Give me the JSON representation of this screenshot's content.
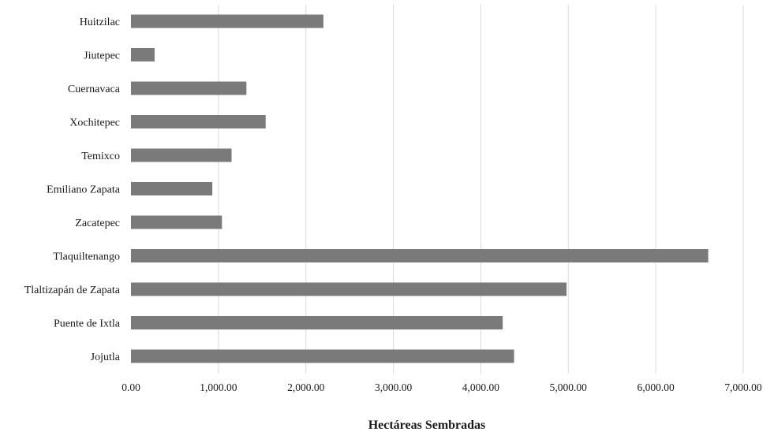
{
  "chart_data": {
    "type": "bar",
    "orientation": "horizontal",
    "categories": [
      "Huitzilac",
      "Jiutepec",
      "Cuernavaca",
      "Xochitepec",
      "Temixco",
      "Emiliano Zapata",
      "Zacatepec",
      "Tlaquiltenango",
      "Tlaltizapán de Zapata",
      "Puente de Ixtla",
      "Jojutla"
    ],
    "values": [
      2200,
      270,
      1320,
      1540,
      1150,
      930,
      1040,
      6600,
      4980,
      4250,
      4380
    ],
    "xlabel": "Hectáreas Sembradas",
    "ylabel": "",
    "xlim": [
      0,
      7000
    ],
    "x_ticks": [
      0,
      1000,
      2000,
      3000,
      4000,
      5000,
      6000,
      7000
    ],
    "x_tick_labels": [
      "0.00",
      "1,000.00",
      "2,000.00",
      "3,000.00",
      "4,000.00",
      "5,000.00",
      "6,000.00",
      "7,000.00"
    ],
    "grid": "vertical",
    "bar_color": "#7a7a7a",
    "grid_color": "#d9d9d9"
  }
}
